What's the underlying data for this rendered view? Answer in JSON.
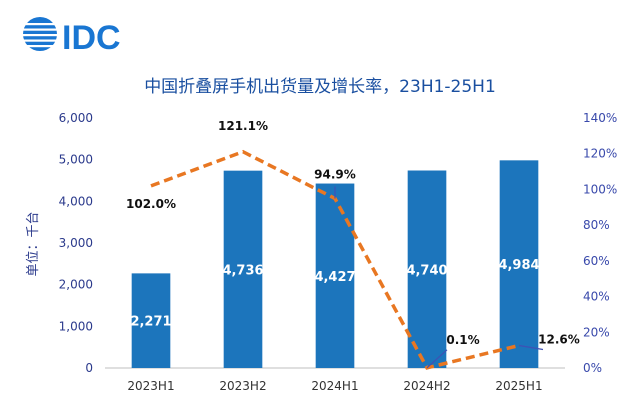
{
  "brand": {
    "logo_text": "IDC",
    "logo_color": "#1976d2"
  },
  "chart_data": {
    "type": "bar+line",
    "title": "中国折叠屏手机出货量及增长率，23H1-25H1",
    "ylabel": "单位：千台",
    "categories": [
      "2023H1",
      "2023H2",
      "2024H1",
      "2024H2",
      "2025H1"
    ],
    "series": [
      {
        "name": "出货量",
        "type": "bar",
        "axis": "left",
        "values": [
          2271,
          4736,
          4427,
          4740,
          4984
        ],
        "labels": [
          "2,271",
          "4,736",
          "4,427",
          "4,740",
          "4,984"
        ],
        "color": "#1c75bc"
      },
      {
        "name": "增长率",
        "type": "line",
        "axis": "right",
        "values": [
          102.0,
          121.1,
          94.9,
          0.1,
          12.6
        ],
        "labels": [
          "102.0%",
          "121.1%",
          "94.9%",
          "0.1%",
          "12.6%"
        ],
        "color": "#e87722"
      }
    ],
    "y_left": {
      "min": 0,
      "max": 6000,
      "ticks": [
        "0",
        "1,000",
        "2,000",
        "3,000",
        "4,000",
        "5,000",
        "6,000"
      ]
    },
    "y_right": {
      "min": 0,
      "max": 140,
      "ticks": [
        "0%",
        "20%",
        "40%",
        "60%",
        "80%",
        "100%",
        "120%",
        "140%"
      ]
    },
    "left_axis_color": "#2b3a8c",
    "right_axis_color": "#3949ab",
    "title_color": "#1a4fa0",
    "leader_color": "#3f51b5"
  }
}
